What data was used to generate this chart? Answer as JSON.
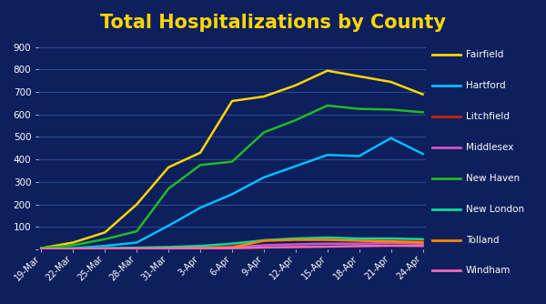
{
  "title": "Total Hospitalizations by County",
  "title_color": "#FFD700",
  "title_bg_color": "#3355AA",
  "plot_bg_color": "#0D1F5C",
  "figure_bg_color": "#0D1F5C",
  "grid_color": "#2a4a8a",
  "text_color": "white",
  "x_labels": [
    "19-Mar",
    "22-Mar",
    "25-Mar",
    "28-Mar",
    "31-Mar",
    "3-Apr",
    "6-Apr",
    "9-Apr",
    "12-Apr",
    "15-Apr",
    "18-Apr",
    "21-Apr",
    "24-Apr"
  ],
  "series": {
    "Fairfield": {
      "color": "#FFD700",
      "values": [
        5,
        30,
        75,
        200,
        365,
        430,
        660,
        680,
        730,
        795,
        770,
        745,
        690
      ]
    },
    "Hartford": {
      "color": "#00BFFF",
      "values": [
        3,
        5,
        15,
        30,
        105,
        185,
        245,
        320,
        370,
        420,
        415,
        495,
        425
      ]
    },
    "Litchfield": {
      "color": "#CC2200",
      "values": [
        1,
        2,
        4,
        5,
        7,
        9,
        12,
        40,
        48,
        48,
        42,
        40,
        35
      ]
    },
    "Middlesex": {
      "color": "#CC55CC",
      "values": [
        1,
        1,
        2,
        3,
        4,
        6,
        8,
        18,
        22,
        25,
        25,
        28,
        25
      ]
    },
    "New Haven": {
      "color": "#22BB22",
      "values": [
        5,
        18,
        45,
        80,
        270,
        375,
        390,
        520,
        575,
        640,
        625,
        622,
        610
      ]
    },
    "New London": {
      "color": "#00DD99",
      "values": [
        2,
        3,
        5,
        7,
        10,
        15,
        25,
        40,
        48,
        52,
        48,
        48,
        45
      ]
    },
    "Tolland": {
      "color": "#FF8800",
      "values": [
        1,
        1,
        2,
        3,
        4,
        6,
        8,
        38,
        42,
        42,
        38,
        35,
        30
      ]
    },
    "Windham": {
      "color": "#FF69B4",
      "values": [
        1,
        1,
        2,
        3,
        3,
        4,
        5,
        8,
        10,
        12,
        14,
        16,
        15
      ]
    }
  },
  "ylim": [
    0,
    900
  ],
  "yticks": [
    0,
    100,
    200,
    300,
    400,
    500,
    600,
    700,
    800,
    900
  ]
}
